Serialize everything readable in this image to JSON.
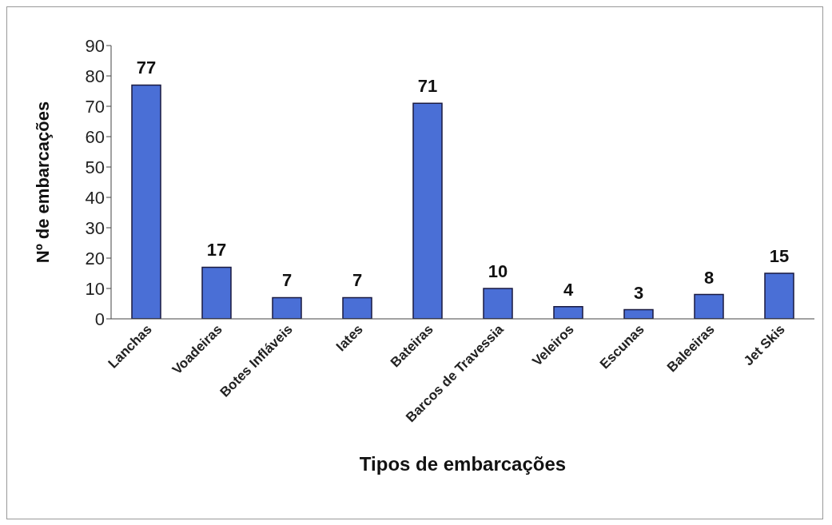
{
  "chart_data": {
    "type": "bar",
    "xlabel": "Tipos de embarcações",
    "ylabel": "Nº de embarcações",
    "categories": [
      "Lanchas",
      "Voadeiras",
      "Botes Infláveis",
      "Iates",
      "Bateiras",
      "Barcos de Travessia",
      "Veleiros",
      "Escunas",
      "Baleeiras",
      "Jet Skis"
    ],
    "values": [
      77,
      17,
      7,
      7,
      71,
      10,
      4,
      3,
      8,
      15
    ],
    "color": "#4a6fd6",
    "data_labels": true,
    "ylim": [
      0,
      90
    ],
    "yticks": [
      0,
      10,
      20,
      30,
      40,
      50,
      60,
      70,
      80,
      90
    ],
    "grid": false
  }
}
